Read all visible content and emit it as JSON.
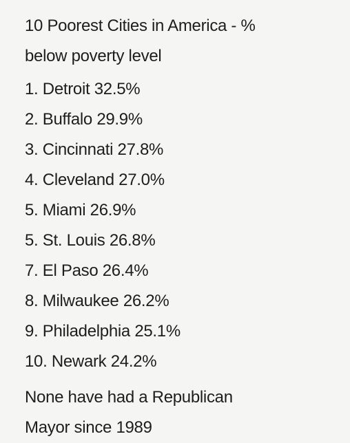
{
  "title": {
    "line1": "10 Poorest Cities in America - %",
    "line2": "below poverty level"
  },
  "list": [
    "1. Detroit 32.5%",
    "2. Buffalo 29.9%",
    "3. Cincinnati 27.8%",
    "4. Cleveland 27.0%",
    "5. Miami 26.9%",
    "5. St. Louis 26.8%",
    "7. El Paso 26.4%",
    "8. Milwaukee 26.2%",
    "9. Philadelphia 25.1%",
    "10. Newark 24.2%"
  ],
  "footer": {
    "line1": "None have had a Republican",
    "line2": "Mayor since 1989"
  }
}
